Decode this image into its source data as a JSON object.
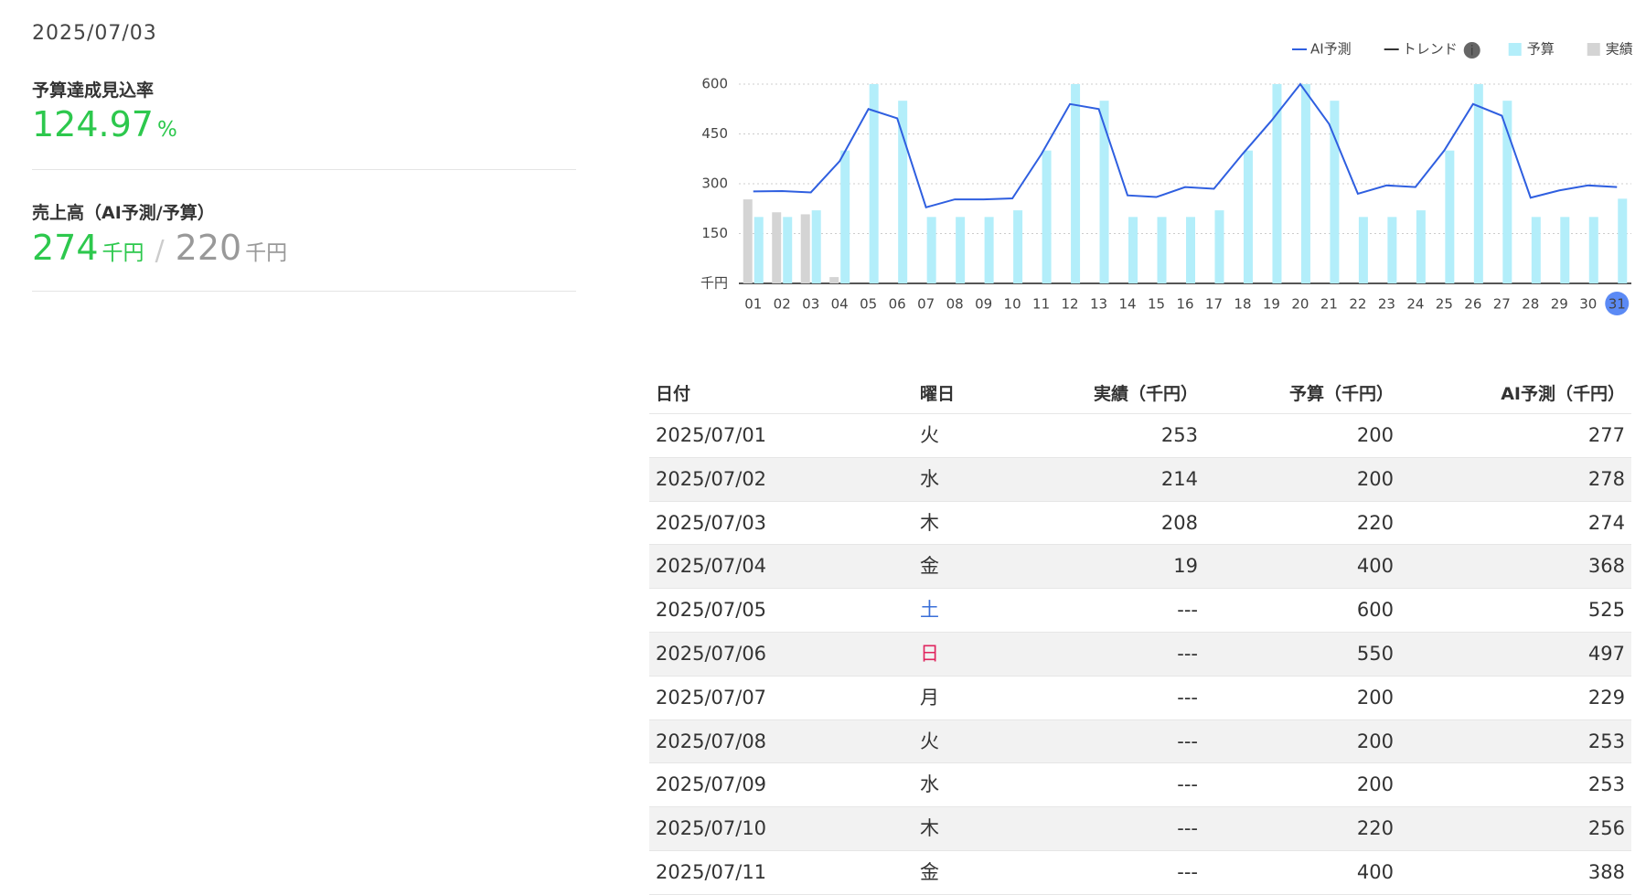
{
  "header": {
    "date": "2025/07/03"
  },
  "kpis": [
    {
      "label": "予算達成見込率",
      "value": 124.97,
      "unit": "%"
    },
    {
      "label": "売上高（AI予測/予算）",
      "value": 274,
      "unit": "千円",
      "separator": "/",
      "secondary_value": 220,
      "secondary_unit": "千円"
    }
  ],
  "chart_data": {
    "type": "bar",
    "categories": [
      "01",
      "02",
      "03",
      "04",
      "05",
      "06",
      "07",
      "08",
      "09",
      "10",
      "11",
      "12",
      "13",
      "14",
      "15",
      "16",
      "17",
      "18",
      "19",
      "20",
      "21",
      "22",
      "23",
      "24",
      "25",
      "26",
      "27",
      "28",
      "29",
      "30",
      "31"
    ],
    "series": [
      {
        "name": "AI予測",
        "type": "line",
        "color": "#2f5fe0",
        "values": [
          277,
          278,
          274,
          368,
          525,
          497,
          229,
          253,
          253,
          256,
          388,
          540,
          525,
          265,
          260,
          290,
          285,
          390,
          490,
          600,
          480,
          270,
          295,
          290,
          400,
          540,
          505,
          258,
          280,
          295,
          290
        ]
      },
      {
        "name": "予算",
        "type": "bar",
        "color": "#b3eefa",
        "values": [
          200,
          200,
          220,
          400,
          600,
          550,
          200,
          200,
          200,
          220,
          400,
          600,
          550,
          200,
          200,
          200,
          220,
          400,
          600,
          600,
          550,
          200,
          200,
          220,
          400,
          600,
          550,
          200,
          200,
          200,
          255
        ]
      },
      {
        "name": "実績",
        "type": "bar",
        "color": "#d4d4d4",
        "values": [
          253,
          214,
          208,
          19,
          null,
          null,
          null,
          null,
          null,
          null,
          null,
          null,
          null,
          null,
          null,
          null,
          null,
          null,
          null,
          null,
          null,
          null,
          null,
          null,
          null,
          null,
          null,
          null,
          null,
          null,
          null
        ]
      }
    ],
    "trend_label": "トレンド",
    "ylim": [
      0,
      600
    ],
    "yticks": [
      {
        "value": 0,
        "label": "千円"
      },
      150,
      300,
      450,
      600
    ],
    "grid": true,
    "highlight": "31"
  },
  "table": {
    "columns": [
      "日付",
      "曜日",
      "実績（千円）",
      "予算（千円）",
      "AI予測（千円）"
    ],
    "rows": [
      [
        "2025/07/01",
        "火",
        253,
        200,
        277
      ],
      [
        "2025/07/02",
        "水",
        214,
        200,
        278
      ],
      [
        "2025/07/03",
        "木",
        208,
        220,
        274
      ],
      [
        "2025/07/04",
        "金",
        19,
        400,
        368
      ],
      [
        "2025/07/05",
        "土",
        "---",
        600,
        525
      ],
      [
        "2025/07/06",
        "日",
        "---",
        550,
        497
      ],
      [
        "2025/07/07",
        "月",
        "---",
        200,
        229
      ],
      [
        "2025/07/08",
        "火",
        "---",
        200,
        253
      ],
      [
        "2025/07/09",
        "水",
        "---",
        200,
        253
      ],
      [
        "2025/07/10",
        "木",
        "---",
        220,
        256
      ],
      [
        "2025/07/11",
        "金",
        "---",
        400,
        388
      ]
    ],
    "weekday_colors": {
      "土": "#3a6fd8",
      "日": "#e0245e"
    }
  }
}
